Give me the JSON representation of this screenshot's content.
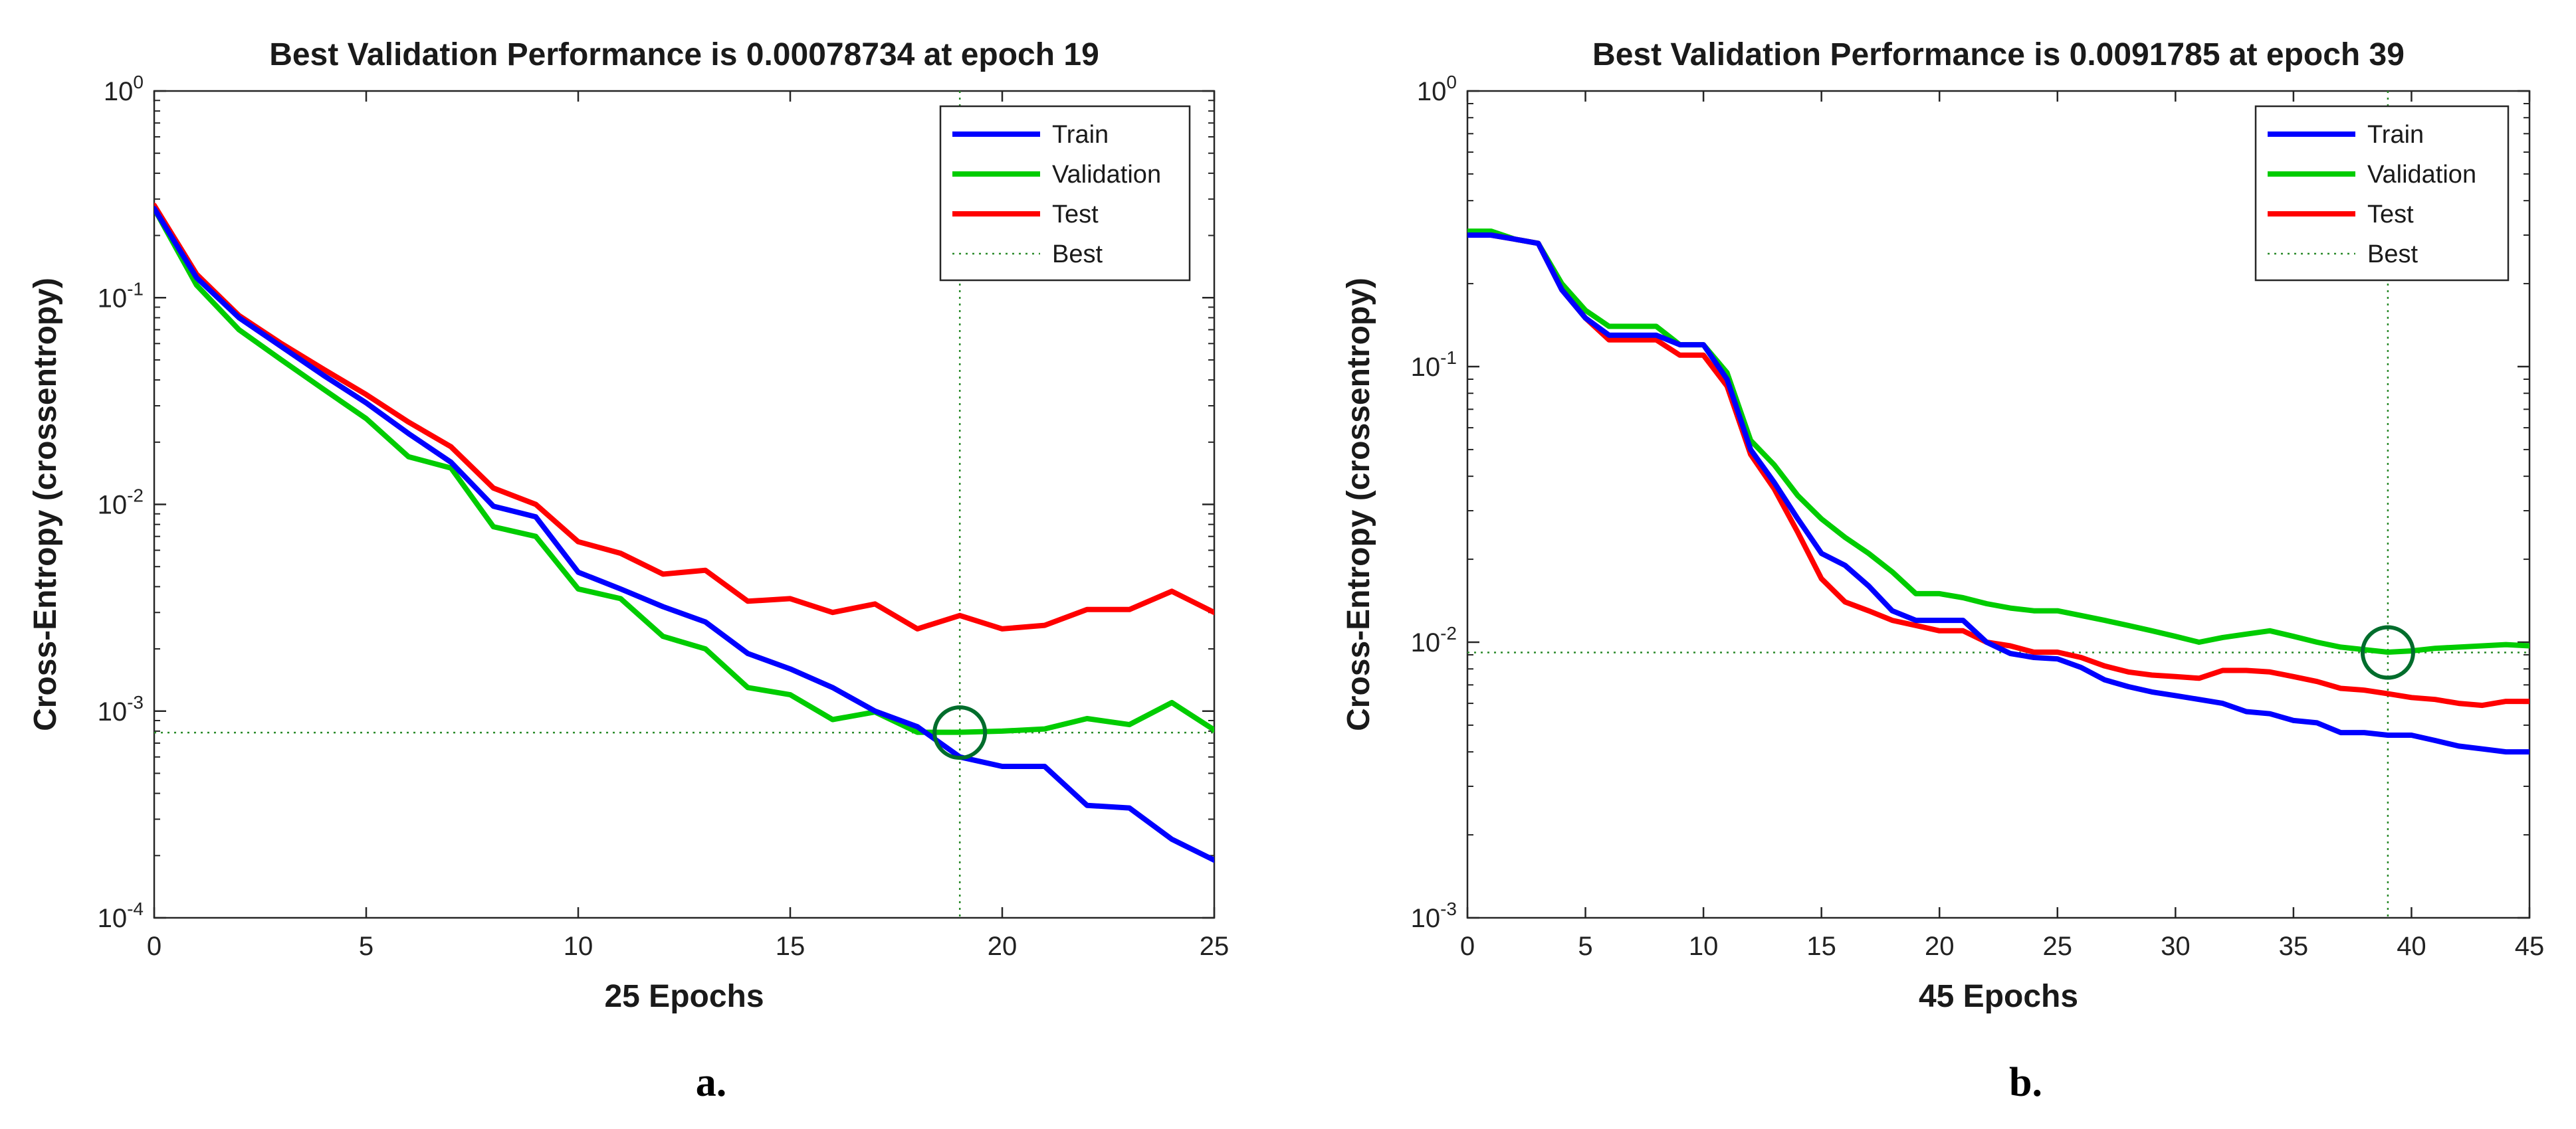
{
  "colors": {
    "train": "#0000ff",
    "validation": "#00cc00",
    "test": "#ff0000",
    "best": "#2a8a2a",
    "circle": "#006d2c"
  },
  "chart_data": [
    {
      "type": "line",
      "panel_label": "a.",
      "title": "Best Validation Performance is 0.00078734 at epoch 19",
      "xlabel": "25 Epochs",
      "ylabel": "Cross-Entropy  (crossentropy)",
      "xlim": [
        0,
        25
      ],
      "xticks": [
        0,
        5,
        10,
        15,
        20,
        25
      ],
      "ylim": [
        0.0001,
        1
      ],
      "yscale": "log",
      "yticks": [
        0.0001,
        0.001,
        0.01,
        0.1,
        1
      ],
      "ytick_labels": [
        [
          "10",
          "-4"
        ],
        [
          "10",
          "-3"
        ],
        [
          "10",
          "-2"
        ],
        [
          "10",
          "-1"
        ],
        [
          "10",
          "0"
        ]
      ],
      "legend_position": "top-right",
      "legend": [
        "Train",
        "Validation",
        "Test",
        "Best"
      ],
      "best": {
        "epoch": 19,
        "value": 0.00078734
      },
      "x": [
        0,
        1,
        2,
        3,
        4,
        5,
        6,
        7,
        8,
        9,
        10,
        11,
        12,
        13,
        14,
        15,
        16,
        17,
        18,
        19,
        20,
        21,
        22,
        23,
        24,
        25
      ],
      "series": [
        {
          "name": "Train",
          "color": "#0000ff",
          "values": [
            0.27,
            0.125,
            0.08,
            0.058,
            0.042,
            0.031,
            0.022,
            0.016,
            0.0098,
            0.0087,
            0.0047,
            0.0039,
            0.0032,
            0.0027,
            0.0019,
            0.0016,
            0.0013,
            0.001,
            0.00084,
            0.0006,
            0.00054,
            0.00054,
            0.00035,
            0.00034,
            0.00024,
            0.00019
          ]
        },
        {
          "name": "Validation",
          "color": "#00cc00",
          "values": [
            0.27,
            0.115,
            0.07,
            0.05,
            0.036,
            0.026,
            0.017,
            0.015,
            0.0078,
            0.007,
            0.0039,
            0.0035,
            0.0023,
            0.002,
            0.0013,
            0.0012,
            0.00091,
            0.00099,
            0.00079,
            0.00079,
            0.0008,
            0.00082,
            0.00092,
            0.00086,
            0.0011,
            0.00081
          ]
        },
        {
          "name": "Test",
          "color": "#ff0000",
          "values": [
            0.28,
            0.13,
            0.082,
            0.06,
            0.045,
            0.034,
            0.025,
            0.019,
            0.012,
            0.01,
            0.0066,
            0.0058,
            0.0046,
            0.0048,
            0.0034,
            0.0035,
            0.003,
            0.0033,
            0.0025,
            0.0029,
            0.0025,
            0.0026,
            0.0031,
            0.0031,
            0.0038,
            0.003
          ]
        }
      ]
    },
    {
      "type": "line",
      "panel_label": "b.",
      "title": "Best Validation Performance is 0.0091785 at epoch 39",
      "xlabel": "45 Epochs",
      "ylabel": "Cross-Entropy  (crossentropy)",
      "xlim": [
        0,
        45
      ],
      "xticks": [
        0,
        5,
        10,
        15,
        20,
        25,
        30,
        35,
        40,
        45
      ],
      "ylim": [
        0.001,
        1
      ],
      "yscale": "log",
      "yticks": [
        0.001,
        0.01,
        0.1,
        1
      ],
      "ytick_labels": [
        [
          "10",
          "-3"
        ],
        [
          "10",
          "-2"
        ],
        [
          "10",
          "-1"
        ],
        [
          "10",
          "0"
        ]
      ],
      "legend_position": "top-right",
      "legend": [
        "Train",
        "Validation",
        "Test",
        "Best"
      ],
      "best": {
        "epoch": 39,
        "value": 0.0091785
      },
      "x": [
        0,
        1,
        2,
        3,
        4,
        5,
        6,
        7,
        8,
        9,
        10,
        11,
        12,
        13,
        14,
        15,
        16,
        17,
        18,
        19,
        20,
        21,
        22,
        23,
        24,
        25,
        26,
        27,
        28,
        29,
        30,
        31,
        32,
        33,
        34,
        35,
        36,
        37,
        38,
        39,
        40,
        41,
        42,
        43,
        44,
        45
      ],
      "series": [
        {
          "name": "Train",
          "color": "#0000ff",
          "values": [
            0.3,
            0.3,
            0.29,
            0.28,
            0.19,
            0.15,
            0.13,
            0.13,
            0.13,
            0.12,
            0.12,
            0.09,
            0.05,
            0.038,
            0.028,
            0.021,
            0.019,
            0.016,
            0.013,
            0.012,
            0.012,
            0.012,
            0.01,
            0.0091,
            0.0088,
            0.0087,
            0.0081,
            0.0073,
            0.0069,
            0.0066,
            0.0064,
            0.0062,
            0.006,
            0.0056,
            0.0055,
            0.0052,
            0.0051,
            0.0047,
            0.0047,
            0.0046,
            0.0046,
            0.0044,
            0.0042,
            0.0041,
            0.004,
            0.004
          ]
        },
        {
          "name": "Validation",
          "color": "#00cc00",
          "values": [
            0.31,
            0.31,
            0.29,
            0.28,
            0.2,
            0.16,
            0.14,
            0.14,
            0.14,
            0.12,
            0.12,
            0.095,
            0.054,
            0.044,
            0.034,
            0.028,
            0.024,
            0.021,
            0.018,
            0.015,
            0.015,
            0.0145,
            0.0138,
            0.0133,
            0.013,
            0.013,
            0.0125,
            0.012,
            0.0115,
            0.011,
            0.0105,
            0.01,
            0.0104,
            0.0107,
            0.011,
            0.0105,
            0.01,
            0.0096,
            0.0094,
            0.0092,
            0.0093,
            0.0095,
            0.0096,
            0.0097,
            0.0098,
            0.0097
          ]
        },
        {
          "name": "Test",
          "color": "#ff0000",
          "values": [
            0.3,
            0.3,
            0.29,
            0.28,
            0.19,
            0.15,
            0.125,
            0.125,
            0.125,
            0.11,
            0.11,
            0.085,
            0.048,
            0.036,
            0.025,
            0.017,
            0.014,
            0.013,
            0.012,
            0.0115,
            0.011,
            0.011,
            0.01,
            0.0097,
            0.0092,
            0.0092,
            0.0088,
            0.0082,
            0.0078,
            0.0076,
            0.0075,
            0.0074,
            0.0079,
            0.0079,
            0.0078,
            0.0075,
            0.0072,
            0.0068,
            0.0067,
            0.0065,
            0.0063,
            0.0062,
            0.006,
            0.0059,
            0.0061,
            0.0061
          ]
        }
      ]
    }
  ]
}
